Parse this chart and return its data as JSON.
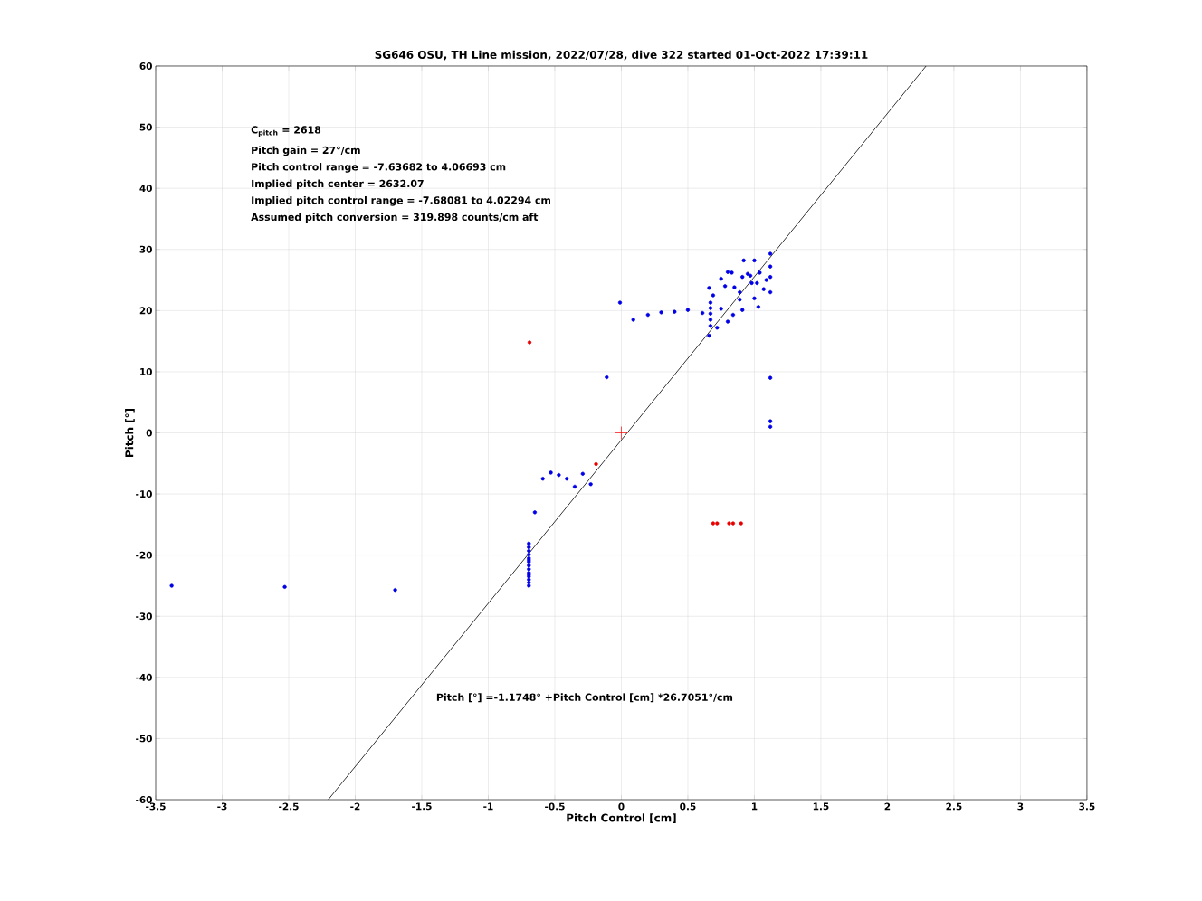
{
  "chart_data": {
    "type": "scatter",
    "title": "SG646 OSU, TH Line mission, 2022/07/28, dive 322 started 01-Oct-2022 17:39:11",
    "xlabel": "Pitch Control [cm]",
    "ylabel": "Pitch [°]",
    "xlim": [
      -3.5,
      3.5
    ],
    "ylim": [
      -60,
      60
    ],
    "xticks": [
      -3.5,
      -3,
      -2.5,
      -2,
      -1.5,
      -1,
      -0.5,
      0,
      0.5,
      1,
      1.5,
      2,
      2.5,
      3,
      3.5
    ],
    "yticks": [
      -60,
      -50,
      -40,
      -30,
      -20,
      -10,
      0,
      10,
      20,
      30,
      40,
      50,
      60
    ],
    "grid": true,
    "series": [
      {
        "marker": "circle",
        "color": "#0000e6",
        "x": [
          -3.38,
          -2.53,
          -1.7,
          -0.695,
          -0.695,
          -0.695,
          -0.695,
          -0.695,
          -0.695,
          -0.695,
          -0.695,
          -0.695,
          -0.695,
          -0.695,
          -0.695,
          -0.695,
          -0.695,
          -0.695,
          -0.65,
          -0.59,
          -0.53,
          -0.47,
          -0.41,
          -0.35,
          -0.29,
          -0.23,
          -0.11,
          -0.01,
          0.09,
          0.2,
          0.3,
          0.4,
          0.5,
          0.61,
          0.66,
          0.66,
          0.67,
          0.67,
          0.67,
          0.67,
          0.67,
          0.69,
          0.72,
          0.75,
          0.75,
          0.78,
          0.8,
          0.8,
          0.83,
          0.84,
          0.85,
          0.89,
          0.89,
          0.91,
          0.91,
          0.92,
          0.95,
          0.97,
          0.98,
          1.0,
          1.0,
          1.02,
          1.03,
          1.04,
          1.07,
          1.09,
          1.12,
          1.12,
          1.12,
          1.12,
          1.12,
          1.12,
          1.12
        ],
        "values": [
          -25.0,
          -25.2,
          -25.7,
          -18.1,
          -18.7,
          -19.3,
          -19.9,
          -20.5,
          -21.1,
          -21.7,
          -22.3,
          -22.9,
          -23.5,
          -24.0,
          -24.5,
          -25.0,
          -20.8,
          -23.2,
          -13.0,
          -7.5,
          -6.5,
          -6.9,
          -7.5,
          -8.8,
          -6.7,
          -8.4,
          9.1,
          21.3,
          18.5,
          19.3,
          19.7,
          19.8,
          20.1,
          19.6,
          23.7,
          15.9,
          17.5,
          18.5,
          19.5,
          20.4,
          21.3,
          22.5,
          17.2,
          20.3,
          25.2,
          24.0,
          18.2,
          26.3,
          26.2,
          19.3,
          23.8,
          23.0,
          21.8,
          20.1,
          25.5,
          28.2,
          26.0,
          25.7,
          24.5,
          28.2,
          22.0,
          24.5,
          20.6,
          26.2,
          23.5,
          25.0,
          29.3,
          27.2,
          25.5,
          23.0,
          9.0,
          1.9,
          1.0
        ]
      },
      {
        "marker": "circle",
        "color": "#e60000",
        "x": [
          -0.69,
          -0.19,
          0.69,
          0.72,
          0.81,
          0.84,
          0.9
        ],
        "values": [
          14.8,
          -5.1,
          -14.8,
          -14.8,
          -14.8,
          -14.8,
          -14.8
        ]
      },
      {
        "marker": "cross",
        "color": "#ff0000",
        "x": [
          0
        ],
        "values": [
          0
        ]
      },
      {
        "type": "line",
        "marker": "none",
        "color": "#000000",
        "x": [
          -2.2028,
          2.2907
        ],
        "values": [
          -60,
          60
        ]
      }
    ],
    "annotations": [
      "C$_{pitch}$ = 2618",
      "Pitch gain = 27°/cm",
      "Pitch control range = -7.63682 to 4.06693 cm",
      "Implied pitch center = 2632.07",
      "Implied pitch control range = -7.68081 to 4.02294 cm",
      "Assumed pitch conversion = 319.898 counts/cm aft",
      "Pitch [°] =-1.1748° +Pitch Control [cm] *26.7051°/cm"
    ]
  }
}
